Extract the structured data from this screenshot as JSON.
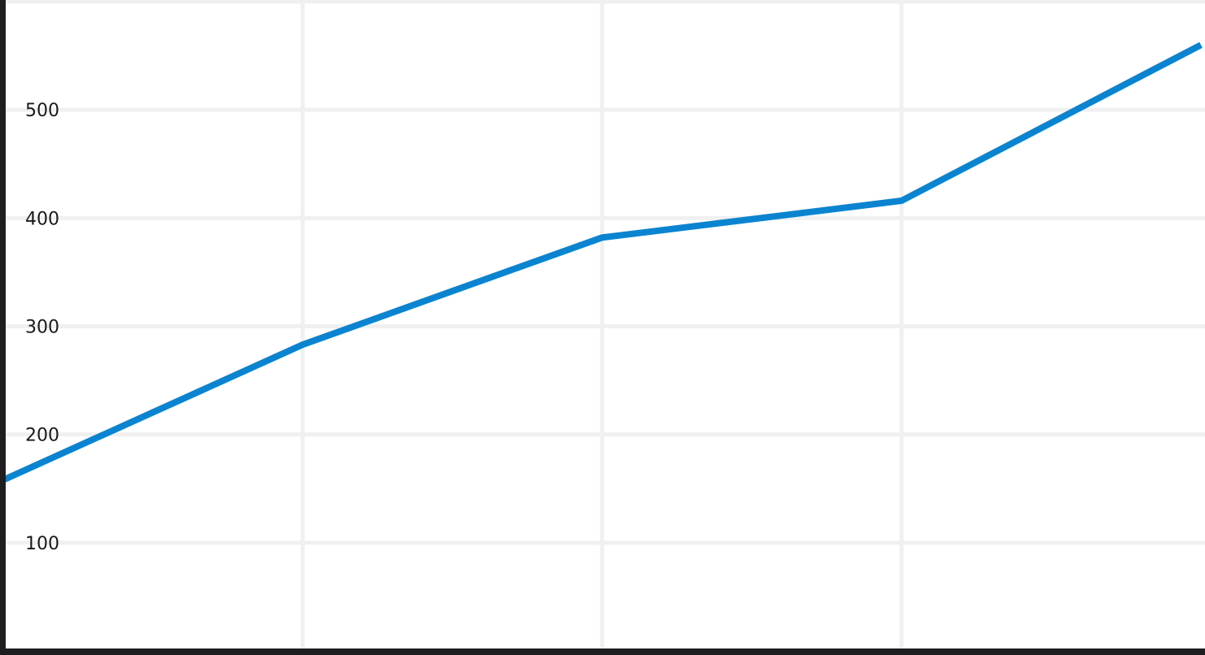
{
  "chart_data": {
    "type": "line",
    "title": "",
    "xlabel": "",
    "ylabel": "",
    "x": [
      0,
      1,
      2,
      3,
      4
    ],
    "series": [
      {
        "values": [
          158,
          283,
          382,
          416,
          560
        ],
        "color": "#0a84d0"
      }
    ],
    "ylim": [
      0,
      600
    ],
    "yticks": [
      100,
      200,
      300,
      400,
      500
    ],
    "ytick_labels": [
      "100",
      "200",
      "300",
      "400",
      "500"
    ],
    "grid": true,
    "grid_color": "#f0f0f0",
    "legend": "none"
  }
}
